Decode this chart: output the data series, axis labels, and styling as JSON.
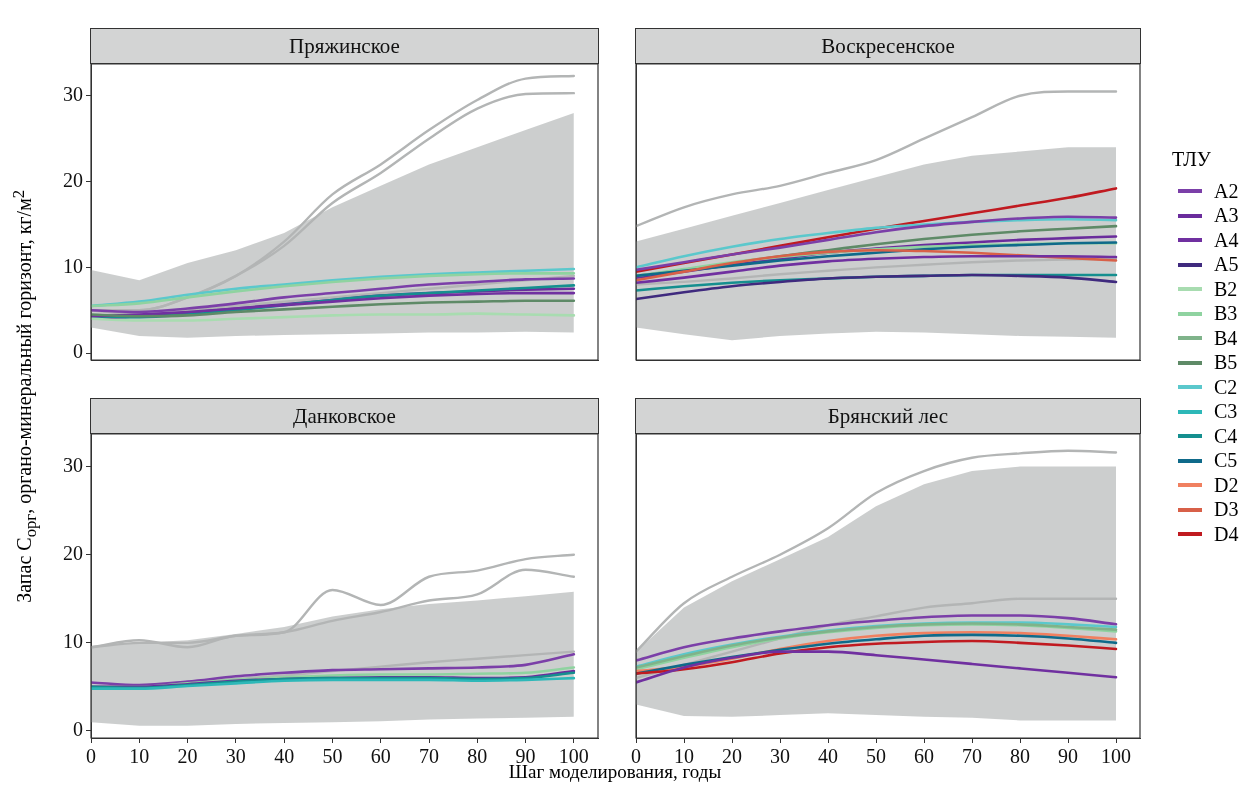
{
  "chart_data": [
    {
      "type": "line",
      "title": "Пряжинское",
      "ylabel": "Запас C$_{орг}$, органо-минеральный горизонт, кг/м$^{2}$",
      "legend": "right",
      "legend_title": "ТЛУ",
      "x": [
        0,
        10,
        20,
        30,
        40,
        50,
        60,
        70,
        80,
        90,
        100
      ],
      "xlim": [
        0,
        105
      ],
      "ylim": [
        -0.8,
        33.7
      ],
      "xticks": [
        0,
        10,
        20,
        30,
        40,
        50,
        60,
        70,
        80,
        90,
        100
      ],
      "yticks": [
        0,
        10,
        20,
        30
      ],
      "tick_labels": "y",
      "grid": false,
      "marker": "none",
      "line_style": "solid",
      "series": [
        {
          "color": "#b3b5b5",
          "values": [
            5,
            4.5,
            5,
            5.5,
            6,
            6.5,
            7,
            7.5,
            8,
            8.5,
            9
          ],
          "lower": [
            3,
            2,
            1.8,
            2,
            2.1,
            2.2,
            2.3,
            2.4,
            2.4,
            2.5,
            2.4
          ],
          "upper": [
            9.7,
            8.5,
            10.5,
            12,
            14,
            17,
            19.5,
            22,
            24,
            26,
            28
          ]
        },
        {
          "color": "#b3b5b5",
          "values": [
            5,
            5,
            6.5,
            9,
            13,
            18.5,
            22,
            26,
            29.5,
            32,
            32.3
          ]
        },
        {
          "color": "#b3b5b5",
          "values": [
            5,
            5,
            6.5,
            9,
            12.5,
            17.5,
            21,
            25,
            28.5,
            30.2,
            30.3
          ]
        },
        {
          "name": "C2",
          "color": "#5bc8cc",
          "values": [
            5.5,
            6,
            6.8,
            7.5,
            8,
            8.5,
            8.9,
            9.2,
            9.4,
            9.6,
            9.8
          ]
        },
        {
          "name": "B3",
          "color": "#8fd3a0",
          "values": [
            5.5,
            5.8,
            6.5,
            7.2,
            7.8,
            8.3,
            8.7,
            9,
            9.2,
            9.3,
            9.3
          ]
        },
        {
          "name": "A2",
          "color": "#7b3fa8",
          "values": [
            5,
            4.8,
            5.2,
            5.8,
            6.5,
            7,
            7.5,
            8,
            8.3,
            8.6,
            8.7
          ]
        },
        {
          "name": "A3",
          "color": "#6a2c9c",
          "values": [
            4,
            4.3,
            4.7,
            5.2,
            5.7,
            6.2,
            6.7,
            7,
            7.2,
            7.4,
            7.5
          ]
        },
        {
          "name": "C4",
          "color": "#158f8f",
          "values": [
            4.3,
            4.2,
            4.5,
            5,
            5.6,
            6.2,
            6.7,
            7,
            7.3,
            7.6,
            7.9
          ]
        },
        {
          "name": "A4",
          "color": "#7030a0",
          "values": [
            4.3,
            4.5,
            4.8,
            5.2,
            5.6,
            6,
            6.4,
            6.7,
            6.9,
            7,
            7
          ]
        },
        {
          "name": "B5",
          "color": "#5e8a67",
          "values": [
            4.5,
            4.3,
            4.4,
            4.8,
            5.1,
            5.4,
            5.7,
            5.9,
            6,
            6.1,
            6.1
          ]
        },
        {
          "name": "B2",
          "color": "#a8dcb0",
          "values": [
            4,
            3.8,
            3.8,
            4,
            4.2,
            4.4,
            4.5,
            4.5,
            4.6,
            4.5,
            4.4
          ]
        }
      ]
    },
    {
      "type": "line",
      "title": "Воскресенское",
      "legend": "right",
      "x": [
        0,
        10,
        20,
        30,
        40,
        50,
        60,
        70,
        80,
        90,
        100
      ],
      "xlim": [
        0,
        105
      ],
      "ylim": [
        -0.8,
        33.7
      ],
      "xticks": [
        0,
        10,
        20,
        30,
        40,
        50,
        60,
        70,
        80,
        90,
        100
      ],
      "yticks": [
        0,
        10,
        20,
        30
      ],
      "tick_labels": false,
      "grid": false,
      "marker": "none",
      "line_style": "solid",
      "series": [
        {
          "color": "#b3b5b5",
          "values": [
            8,
            8.3,
            8.7,
            9.2,
            9.6,
            10,
            10.3,
            10.6,
            10.8,
            10.9,
            11
          ],
          "lower": [
            3,
            2.2,
            1.5,
            2,
            2.3,
            2.5,
            2.4,
            2.2,
            2,
            1.9,
            1.8
          ],
          "upper": [
            13,
            14.5,
            16,
            17.5,
            19,
            20.5,
            22,
            23,
            23.5,
            24,
            24
          ]
        },
        {
          "color": "#b3b5b5",
          "values": [
            14.8,
            17,
            18.5,
            19.5,
            21,
            22.5,
            25,
            27.5,
            30,
            30.5,
            30.5
          ]
        },
        {
          "name": "D4",
          "color": "#c01a20",
          "values": [
            9.5,
            10.5,
            11.5,
            12.5,
            13.5,
            14.5,
            15.4,
            16.3,
            17.2,
            18.1,
            19.2
          ]
        },
        {
          "name": "C2",
          "color": "#5bc8cc",
          "values": [
            10,
            11.3,
            12.4,
            13.3,
            14,
            14.6,
            15,
            15.3,
            15.5,
            15.6,
            15.5
          ]
        },
        {
          "name": "A2",
          "color": "#7b3fa8",
          "values": [
            9.7,
            10.6,
            11.5,
            12.3,
            13.2,
            14.1,
            14.8,
            15.3,
            15.7,
            15.9,
            15.8
          ]
        },
        {
          "name": "B5",
          "color": "#5e8a67",
          "values": [
            9,
            9.7,
            10.5,
            11.3,
            12,
            12.7,
            13.3,
            13.8,
            14.2,
            14.5,
            14.8
          ]
        },
        {
          "name": "A3",
          "color": "#6a2c9c",
          "values": [
            8.8,
            9.5,
            10.3,
            11,
            11.7,
            12.2,
            12.6,
            12.9,
            13.2,
            13.4,
            13.6
          ]
        },
        {
          "name": "B3",
          "color": "#8fd3a0",
          "values": [
            9,
            9.8,
            10.6,
            11.2,
            11.7,
            12.1,
            12.4,
            12.6,
            12.7,
            12.8,
            12.8
          ]
        },
        {
          "name": "C5",
          "color": "#0f6a8a",
          "values": [
            9,
            9.6,
            10.2,
            10.8,
            11.3,
            11.7,
            12.1,
            12.4,
            12.6,
            12.8,
            12.9
          ]
        },
        {
          "name": "D3",
          "color": "#d86048",
          "values": [
            8.5,
            9.5,
            10.5,
            11.3,
            11.8,
            12,
            11.9,
            11.7,
            11.4,
            11.1,
            10.8
          ]
        },
        {
          "name": "A4",
          "color": "#7030a0",
          "values": [
            8.2,
            8.8,
            9.5,
            10.2,
            10.7,
            11,
            11.2,
            11.3,
            11.3,
            11.3,
            11.2
          ]
        },
        {
          "name": "C4",
          "color": "#158f8f",
          "values": [
            7.3,
            7.8,
            8.2,
            8.5,
            8.7,
            8.9,
            9,
            9.1,
            9.1,
            9.1,
            9.1
          ]
        },
        {
          "name": "A5",
          "color": "#3f2a7e",
          "values": [
            6.3,
            7.1,
            7.8,
            8.3,
            8.7,
            8.9,
            9,
            9.1,
            9,
            8.8,
            8.3
          ]
        }
      ]
    },
    {
      "type": "line",
      "title": "Данковское",
      "legend": "right",
      "xlabel": "Шаг моделирования, годы",
      "x": [
        0,
        10,
        20,
        30,
        40,
        50,
        60,
        70,
        80,
        90,
        100
      ],
      "xlim": [
        0,
        105
      ],
      "ylim": [
        -0.8,
        33.7
      ],
      "xticks": [
        0,
        10,
        20,
        30,
        40,
        50,
        60,
        70,
        80,
        90,
        100
      ],
      "yticks": [
        0,
        10,
        20,
        30
      ],
      "grid": false,
      "marker": "none",
      "line_style": "solid",
      "series": [
        {
          "color": "#b3b5b5",
          "values": [
            5,
            5.2,
            5.5,
            5.9,
            6.3,
            6.8,
            7.3,
            7.8,
            8.2,
            8.6,
            9
          ],
          "lower": [
            1,
            0.6,
            0.6,
            0.8,
            0.9,
            1,
            1.1,
            1.3,
            1.4,
            1.5,
            1.6
          ],
          "upper": [
            9.5,
            10,
            10.3,
            11,
            11.8,
            13,
            13.8,
            14.4,
            14.8,
            15.3,
            15.8
          ]
        },
        {
          "color": "#b3b5b5",
          "values": [
            9.5,
            10.3,
            9.5,
            10.8,
            11.2,
            16,
            14.3,
            17.5,
            18.2,
            19.5,
            20
          ]
        },
        {
          "color": "#b3b5b5",
          "values": [
            9.5,
            10,
            10,
            10.8,
            11.2,
            12.5,
            13.5,
            14.8,
            15.5,
            18.3,
            17.5
          ]
        },
        {
          "name": "A2",
          "color": "#7b3fa8",
          "values": [
            5.5,
            5.2,
            5.6,
            6.2,
            6.6,
            6.9,
            7,
            7.1,
            7.2,
            7.5,
            8.7
          ]
        },
        {
          "name": "B3",
          "color": "#8fd3a0",
          "values": [
            5,
            5,
            5.4,
            5.8,
            6.1,
            6.3,
            6.4,
            6.4,
            6.5,
            6.6,
            7.2
          ]
        },
        {
          "name": "A3",
          "color": "#6a2c9c",
          "values": [
            5,
            5,
            5.3,
            5.7,
            5.9,
            6,
            6.1,
            6.1,
            6,
            6.1,
            6.8
          ]
        },
        {
          "name": "C4",
          "color": "#158f8f",
          "values": [
            5,
            4.9,
            5.2,
            5.6,
            5.9,
            6,
            6,
            6,
            5.9,
            6,
            6.6
          ]
        },
        {
          "name": "C3",
          "color": "#2db8b8",
          "values": [
            4.8,
            4.8,
            5.1,
            5.4,
            5.7,
            5.8,
            5.8,
            5.8,
            5.7,
            5.8,
            6
          ]
        }
      ]
    },
    {
      "type": "line",
      "title": "Брянский лес",
      "legend": "right",
      "x": [
        0,
        10,
        20,
        30,
        40,
        50,
        60,
        70,
        80,
        90,
        100
      ],
      "xlim": [
        0,
        105
      ],
      "ylim": [
        -0.8,
        33.7
      ],
      "xticks": [
        0,
        10,
        20,
        30,
        40,
        50,
        60,
        70,
        80,
        90,
        100
      ],
      "yticks": [
        0,
        10,
        20,
        30
      ],
      "tick_labels": "x",
      "grid": false,
      "marker": "none",
      "line_style": "solid",
      "series": [
        {
          "color": "#b3b5b5",
          "values": [
            6,
            7.5,
            9,
            10.5,
            12,
            13,
            14,
            14.5,
            15,
            15,
            15
          ],
          "lower": [
            3,
            1.7,
            1.6,
            1.8,
            2,
            1.8,
            1.6,
            1.5,
            1.2,
            1.2,
            1.2
          ],
          "upper": [
            9,
            14,
            17,
            19.5,
            22,
            25.5,
            28,
            29.5,
            30,
            30,
            30
          ]
        },
        {
          "color": "#b3b5b5",
          "values": [
            9,
            14.5,
            17.5,
            20,
            23,
            27,
            29.5,
            31,
            31.5,
            31.8,
            31.6
          ]
        },
        {
          "name": "A2",
          "color": "#7b3fa8",
          "values": [
            8,
            9.5,
            10.5,
            11.3,
            12,
            12.5,
            12.9,
            13.1,
            13.1,
            12.8,
            12.1
          ]
        },
        {
          "name": "C2",
          "color": "#5bc8cc",
          "values": [
            7.3,
            8.7,
            9.8,
            10.7,
            11.4,
            11.9,
            12.2,
            12.3,
            12.3,
            12.1,
            11.8
          ]
        },
        {
          "name": "B3",
          "color": "#8fd3a0",
          "values": [
            7,
            8.3,
            9.5,
            10.5,
            11.2,
            11.7,
            12,
            12.1,
            12,
            11.7,
            11.3
          ]
        },
        {
          "name": "B4",
          "color": "#7fb38a",
          "values": [
            7.2,
            8.5,
            9.7,
            10.6,
            11.3,
            11.8,
            12.1,
            12.2,
            12.1,
            11.8,
            11.5
          ]
        },
        {
          "name": "D2",
          "color": "#f08060",
          "values": [
            6.8,
            7.3,
            8.2,
            9.3,
            10.2,
            10.8,
            11.1,
            11.2,
            11.1,
            10.8,
            10.4
          ]
        },
        {
          "name": "C5",
          "color": "#0f6a8a",
          "values": [
            6.5,
            7.5,
            8.4,
            9.2,
            9.9,
            10.4,
            10.8,
            10.9,
            10.8,
            10.5,
            10
          ]
        },
        {
          "name": "D4",
          "color": "#c01a20",
          "values": [
            6.5,
            7,
            7.8,
            8.8,
            9.5,
            9.9,
            10.1,
            10.2,
            10,
            9.7,
            9.3
          ]
        },
        {
          "name": "A4",
          "color": "#7030a0",
          "values": [
            5.5,
            7.2,
            8.3,
            9,
            9,
            8.6,
            8.1,
            7.6,
            7.1,
            6.6,
            6.1
          ]
        }
      ]
    }
  ]
}
